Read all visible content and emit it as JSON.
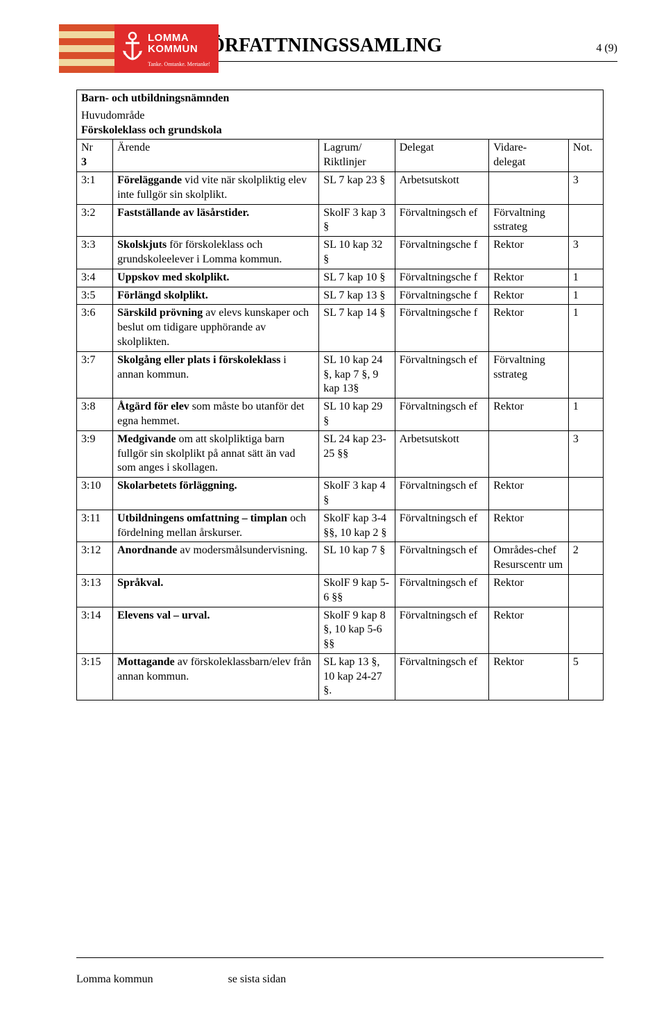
{
  "logo": {
    "line1": "LOMMA",
    "line2": "KOMMUN",
    "tagline": "Tanke. Omtanke. Mertanke!"
  },
  "title": "FÖRFATTNINGSSAMLING",
  "page_number": "4 (9)",
  "subject_line": "Barn- och utbildningsnämnden",
  "huvudomrade_label": "Huvudområde",
  "huvudomrade_value": "Förskoleklass och grundskola",
  "head": {
    "nr": "Nr",
    "nr_main": "3",
    "arende": "Ärende",
    "lagrum1": "Lagrum/",
    "lagrum2": "Riktlinjer",
    "delegat": "Delegat",
    "vidare1": "Vidare-",
    "vidare2": "delegat",
    "not": "Not."
  },
  "rows": [
    {
      "nr": "3:1",
      "arende_pre": "Föreläggande",
      "arende_rest": " vid vite när skolpliktig elev inte fullgör sin skolplikt.",
      "lagrum": "SL 7 kap 23 §",
      "delegat": "Arbetsutskott",
      "vidare": "",
      "not": "3"
    },
    {
      "nr": "3:2",
      "arende_pre": "Fastställande av läsårstider.",
      "arende_rest": "",
      "lagrum": "SkolF 3 kap 3 §",
      "delegat": "Förvaltningsch ef",
      "vidare": "Förvaltning sstrateg",
      "not": ""
    },
    {
      "nr": "3:3",
      "arende_pre": "Skolskjuts",
      "arende_rest": " för förskoleklass och grundskoleelever i Lomma kommun.",
      "lagrum": "SL 10 kap 32 §",
      "delegat": "Förvaltningsche f",
      "vidare": "Rektor",
      "not": "3"
    },
    {
      "nr": "3:4",
      "arende_pre": "Uppskov med skolplikt.",
      "arende_rest": "",
      "lagrum": "SL 7 kap 10 §",
      "delegat": "Förvaltningsche f",
      "vidare": "Rektor",
      "not": "1"
    },
    {
      "nr": "3:5",
      "arende_pre": "Förlängd skolplikt.",
      "arende_rest": "",
      "lagrum": "SL 7 kap 13 §",
      "delegat": "Förvaltningsche f",
      "vidare": "Rektor",
      "not": "1"
    },
    {
      "nr": "3:6",
      "arende_pre": "Särskild prövning",
      "arende_rest": " av elevs kunskaper och beslut om tidigare upphörande av skolplikten.",
      "lagrum": "SL 7 kap 14 §",
      "delegat": "Förvaltningsche f",
      "vidare": "Rektor",
      "not": "1"
    },
    {
      "nr": "3:7",
      "arende_pre": "Skolgång eller plats i förskoleklass",
      "arende_rest": " i annan kommun.",
      "lagrum": "SL 10 kap 24 §, kap 7 §, 9 kap 13§",
      "delegat": "Förvaltningsch ef",
      "vidare": "Förvaltning sstrateg",
      "not": ""
    },
    {
      "nr": "3:8",
      "arende_pre": "Åtgärd för elev",
      "arende_rest": " som måste bo utanför det egna hemmet.",
      "lagrum": "SL 10 kap 29 §",
      "delegat": "Förvaltningsch ef",
      "vidare": "Rektor",
      "not": "1"
    },
    {
      "nr": "3:9",
      "arende_pre": "Medgivande",
      "arende_rest": " om att skolpliktiga barn fullgör sin skolplikt på annat sätt än vad som anges i skollagen.",
      "lagrum": "SL 24 kap 23-25 §§",
      "delegat": "Arbetsutskott",
      "vidare": "",
      "not": "3"
    },
    {
      "nr": "3:10",
      "arende_pre": "Skolarbetets förläggning.",
      "arende_rest": "",
      "lagrum": "SkolF 3 kap 4 §",
      "delegat": "Förvaltningsch ef",
      "vidare": "Rektor",
      "not": ""
    },
    {
      "nr": "3:11",
      "arende_pre": "Utbildningens omfattning – timplan",
      "arende_rest": " och fördelning mellan årskurser.",
      "lagrum": "SkolF kap 3-4 §§, 10 kap 2 §",
      "delegat": "Förvaltningsch ef",
      "vidare": "Rektor",
      "not": ""
    },
    {
      "nr": "3:12",
      "arende_pre": "Anordnande",
      "arende_rest": " av modersmålsundervisning.",
      "lagrum": "SL 10 kap 7 §",
      "delegat": "Förvaltningsch ef",
      "vidare": "Områdes-chef Resurscentr um",
      "not": "2"
    },
    {
      "nr": "3:13",
      "arende_pre": "Språkval.",
      "arende_rest": "",
      "lagrum": "SkolF 9 kap 5-6 §§",
      "delegat": "Förvaltningsch ef",
      "vidare": "Rektor",
      "not": ""
    },
    {
      "nr": "3:14",
      "arende_pre": "Elevens val – urval.",
      "arende_rest": "",
      "lagrum": "SkolF 9 kap 8 §, 10 kap 5-6 §§",
      "delegat": "Förvaltningsch ef",
      "vidare": "Rektor",
      "not": ""
    },
    {
      "nr": "3:15",
      "arende_pre": "Mottagande",
      "arende_rest": " av förskoleklassbarn/elev från annan kommun.",
      "lagrum": "SL kap 13 §, 10 kap 24-27 §.",
      "delegat": "Förvaltningsch ef",
      "vidare": "Rektor",
      "not": "5"
    }
  ],
  "footer": {
    "left": "Lomma kommun",
    "right": "se sista sidan"
  }
}
